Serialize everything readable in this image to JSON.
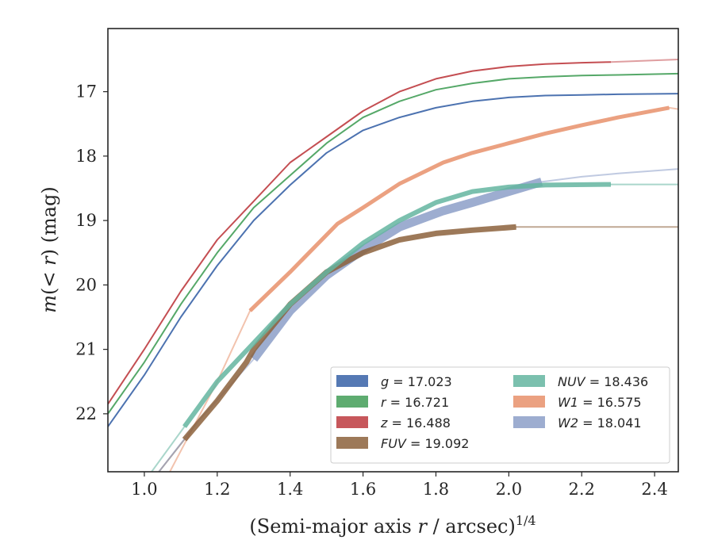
{
  "chart_data": {
    "type": "line",
    "title": "",
    "xlabel": "(Semi-major axis r / arcsec)",
    "xlabel_parts": {
      "open": "(Semi-major axis ",
      "var": "r",
      "rest": " / arcsec)",
      "exp": "1/4"
    },
    "ylabel": "m(< r) (mag)",
    "ylabel_parts": {
      "var": "m",
      "mid": "(< ",
      "var2": "r",
      "rest": ") (mag)"
    },
    "xlim": [
      0.9,
      2.465
    ],
    "ylim": [
      22.9,
      16.02
    ],
    "y_inverted": true,
    "xticks": [
      "1.0",
      "1.2",
      "1.4",
      "1.6",
      "1.8",
      "2.0",
      "2.2",
      "2.4"
    ],
    "yticks": [
      "17",
      "18",
      "19",
      "20",
      "21",
      "22"
    ],
    "grid": false,
    "legend_placement": "lower-right",
    "series": [
      {
        "name": "g = 17.023",
        "band": "g",
        "value": "17.023",
        "color": "#4c72b0",
        "width": 2,
        "points": [
          [
            0.9,
            22.2
          ],
          [
            1.0,
            21.4
          ],
          [
            1.1,
            20.5
          ],
          [
            1.2,
            19.7
          ],
          [
            1.3,
            19.0
          ],
          [
            1.4,
            18.45
          ],
          [
            1.5,
            17.95
          ],
          [
            1.6,
            17.6
          ],
          [
            1.7,
            17.4
          ],
          [
            1.8,
            17.25
          ],
          [
            1.9,
            17.15
          ],
          [
            2.0,
            17.09
          ],
          [
            2.1,
            17.06
          ],
          [
            2.2,
            17.05
          ],
          [
            2.3,
            17.04
          ],
          [
            2.465,
            17.03
          ]
        ]
      },
      {
        "name": "r = 16.721",
        "band": "r",
        "value": "16.721",
        "color": "#55a868",
        "width": 2,
        "points": [
          [
            0.9,
            22.0
          ],
          [
            1.0,
            21.2
          ],
          [
            1.1,
            20.3
          ],
          [
            1.2,
            19.5
          ],
          [
            1.3,
            18.8
          ],
          [
            1.4,
            18.3
          ],
          [
            1.5,
            17.8
          ],
          [
            1.6,
            17.4
          ],
          [
            1.7,
            17.15
          ],
          [
            1.8,
            16.97
          ],
          [
            1.9,
            16.87
          ],
          [
            2.0,
            16.8
          ],
          [
            2.1,
            16.77
          ],
          [
            2.2,
            16.75
          ],
          [
            2.3,
            16.74
          ],
          [
            2.465,
            16.72
          ]
        ]
      },
      {
        "name": "z = 16.488",
        "band": "z",
        "value": "16.488",
        "color": "#c44e52",
        "width": 2,
        "points": [
          [
            0.9,
            21.85
          ],
          [
            1.0,
            21.0
          ],
          [
            1.1,
            20.1
          ],
          [
            1.2,
            19.3
          ],
          [
            1.3,
            18.7
          ],
          [
            1.4,
            18.1
          ],
          [
            1.5,
            17.7
          ],
          [
            1.6,
            17.3
          ],
          [
            1.7,
            17.0
          ],
          [
            1.8,
            16.8
          ],
          [
            1.9,
            16.68
          ],
          [
            2.0,
            16.61
          ],
          [
            2.1,
            16.57
          ],
          [
            2.2,
            16.55
          ],
          [
            2.28,
            16.54
          ]
        ],
        "ext": [
          [
            2.28,
            16.54
          ],
          [
            2.465,
            16.5
          ]
        ]
      },
      {
        "name": "FUV = 19.092",
        "band": "FUV",
        "value": "19.092",
        "color": "#8c613c",
        "width": 7,
        "points": [
          [
            1.11,
            22.4
          ],
          [
            1.2,
            21.8
          ],
          [
            1.28,
            21.2
          ],
          [
            1.3,
            21.0
          ],
          [
            1.4,
            20.3
          ],
          [
            1.5,
            19.8
          ],
          [
            1.6,
            19.5
          ],
          [
            1.7,
            19.3
          ],
          [
            1.8,
            19.2
          ],
          [
            1.9,
            19.15
          ],
          [
            2.02,
            19.1
          ]
        ],
        "ext": [
          [
            2.02,
            19.1
          ],
          [
            2.465,
            19.1
          ]
        ],
        "pre": [
          [
            1.04,
            22.9
          ],
          [
            1.11,
            22.4
          ]
        ]
      },
      {
        "name": "NUV = 18.436",
        "band": "NUV",
        "value": "18.436",
        "color": "#64b5a0",
        "width": 6,
        "points": [
          [
            1.11,
            22.2
          ],
          [
            1.2,
            21.5
          ],
          [
            1.3,
            20.9
          ],
          [
            1.4,
            20.3
          ],
          [
            1.5,
            19.8
          ],
          [
            1.6,
            19.35
          ],
          [
            1.7,
            19.0
          ],
          [
            1.8,
            18.72
          ],
          [
            1.9,
            18.55
          ],
          [
            2.0,
            18.48
          ],
          [
            2.1,
            18.45
          ],
          [
            2.28,
            18.44
          ]
        ],
        "ext": [
          [
            2.28,
            18.44
          ],
          [
            2.465,
            18.44
          ]
        ],
        "pre": [
          [
            1.02,
            22.9
          ],
          [
            1.11,
            22.2
          ]
        ]
      },
      {
        "name": "W1 = 16.575",
        "band": "W1",
        "value": "16.575",
        "color": "#e8916b",
        "width": 5,
        "points": [
          [
            1.29,
            20.4
          ],
          [
            1.4,
            19.8
          ],
          [
            1.53,
            19.05
          ],
          [
            1.6,
            18.8
          ],
          [
            1.7,
            18.43
          ],
          [
            1.82,
            18.1
          ],
          [
            1.9,
            17.95
          ],
          [
            2.0,
            17.8
          ],
          [
            2.1,
            17.65
          ],
          [
            2.2,
            17.52
          ],
          [
            2.3,
            17.4
          ],
          [
            2.44,
            17.25
          ]
        ],
        "ext": [
          [
            2.44,
            17.25
          ],
          [
            2.465,
            17.27
          ]
        ],
        "pre": [
          [
            1.07,
            22.9
          ],
          [
            1.2,
            21.5
          ],
          [
            1.29,
            20.4
          ]
        ]
      },
      {
        "name": "W2 = 18.041",
        "band": "W2",
        "value": "18.041",
        "color": "#8c9fc8",
        "width": 11,
        "points": [
          [
            1.3,
            21.15
          ],
          [
            1.4,
            20.4
          ],
          [
            1.5,
            19.85
          ],
          [
            1.6,
            19.45
          ],
          [
            1.7,
            19.1
          ],
          [
            1.82,
            18.85
          ],
          [
            1.9,
            18.72
          ],
          [
            2.0,
            18.55
          ],
          [
            2.09,
            18.4
          ]
        ],
        "ext": [
          [
            2.09,
            18.4
          ],
          [
            2.2,
            18.32
          ],
          [
            2.3,
            18.27
          ],
          [
            2.465,
            18.2
          ]
        ],
        "pre": [
          [
            1.04,
            22.9
          ],
          [
            1.15,
            22.1
          ],
          [
            1.3,
            21.15
          ]
        ]
      }
    ]
  }
}
